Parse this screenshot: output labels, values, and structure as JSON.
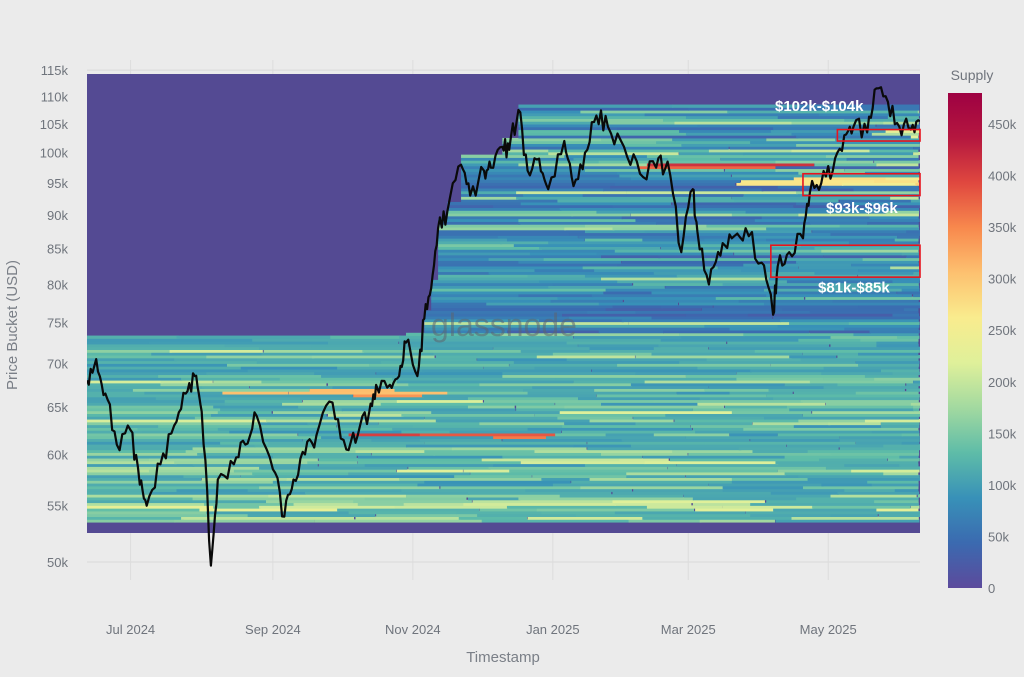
{
  "chart_data": {
    "type": "heatmap",
    "watermark": "glassnode",
    "xlabel": "Timestamp",
    "ylabel": "Price Bucket (USD)",
    "y_scale": "log",
    "ylim": [
      48500,
      117000
    ],
    "xlim": [
      "2024-06-12",
      "2025-06-10"
    ],
    "x_ticks": [
      {
        "date": "2024-07-01",
        "label": "Jul 2024"
      },
      {
        "date": "2024-09-01",
        "label": "Sep 2024"
      },
      {
        "date": "2024-11-01",
        "label": "Nov 2024"
      },
      {
        "date": "2025-01-01",
        "label": "Jan 2025"
      },
      {
        "date": "2025-03-01",
        "label": "Mar 2025"
      },
      {
        "date": "2025-05-01",
        "label": "May 2025"
      }
    ],
    "y_ticks": [
      {
        "value": 50000,
        "label": "50k"
      },
      {
        "value": 55000,
        "label": "55k"
      },
      {
        "value": 60000,
        "label": "60k"
      },
      {
        "value": 65000,
        "label": "65k"
      },
      {
        "value": 70000,
        "label": "70k"
      },
      {
        "value": 75000,
        "label": "75k"
      },
      {
        "value": 80000,
        "label": "80k"
      },
      {
        "value": 85000,
        "label": "85k"
      },
      {
        "value": 90000,
        "label": "90k"
      },
      {
        "value": 95000,
        "label": "95k"
      },
      {
        "value": 100000,
        "label": "100k"
      },
      {
        "value": 105000,
        "label": "105k"
      },
      {
        "value": 110000,
        "label": "110k"
      },
      {
        "value": 115000,
        "label": "115k"
      }
    ],
    "colorbar": {
      "title": "Supply",
      "range": [
        0,
        480000
      ],
      "ticks": [
        {
          "value": 0,
          "label": "0"
        },
        {
          "value": 50000,
          "label": "50k"
        },
        {
          "value": 100000,
          "label": "100k"
        },
        {
          "value": 150000,
          "label": "150k"
        },
        {
          "value": 200000,
          "label": "200k"
        },
        {
          "value": 250000,
          "label": "250k"
        },
        {
          "value": 300000,
          "label": "300k"
        },
        {
          "value": 350000,
          "label": "350k"
        },
        {
          "value": 400000,
          "label": "400k"
        },
        {
          "value": 450000,
          "label": "450k"
        }
      ],
      "colors": [
        "#5c4a9c",
        "#3b6ab0",
        "#3891b8",
        "#5ebca8",
        "#a2d9a0",
        "#dff09a",
        "#f9ec8e",
        "#fdc170",
        "#f8894d",
        "#e0483f",
        "#b5173f",
        "#9e0142"
      ]
    },
    "empty_color": "#544a93",
    "heatmap_bands": [
      {
        "price_low": 53500,
        "price_high": 73500,
        "start": "2024-06-12",
        "end": "2025-06-10",
        "level": 110000,
        "note": "dense band under 73.5k across whole period"
      },
      {
        "price_low": 66200,
        "price_high": 67000,
        "start": "2024-08-05",
        "end": "2024-10-10",
        "level": 320000
      },
      {
        "price_low": 61500,
        "price_high": 62300,
        "start": "2024-10-08",
        "end": "2024-12-10",
        "level": 400000
      },
      {
        "price_low": 55000,
        "price_high": 55600,
        "start": "2024-11-01",
        "end": "2025-02-20",
        "level": 230000
      },
      {
        "price_low": 97000,
        "price_high": 98500,
        "start": "2025-02-01",
        "end": "2025-03-15",
        "level": 400000
      },
      {
        "price_low": 94500,
        "price_high": 96000,
        "start": "2025-03-20",
        "end": "2025-06-10",
        "level": 300000
      },
      {
        "price_low": 102000,
        "price_high": 104000,
        "start": "2025-05-10",
        "end": "2025-06-10",
        "level": 220000
      }
    ],
    "series": [
      {
        "type": "line",
        "x": [
          "2024-06-12",
          "2024-06-16",
          "2024-06-20",
          "2024-06-25",
          "2024-07-01",
          "2024-07-05",
          "2024-07-08",
          "2024-07-14",
          "2024-07-20",
          "2024-07-25",
          "2024-07-29",
          "2024-08-01",
          "2024-08-05",
          "2024-08-08",
          "2024-08-15",
          "2024-08-20",
          "2024-08-25",
          "2024-09-01",
          "2024-09-06",
          "2024-09-10",
          "2024-09-15",
          "2024-09-20",
          "2024-09-27",
          "2024-10-03",
          "2024-10-08",
          "2024-10-13",
          "2024-10-16",
          "2024-10-22",
          "2024-10-26",
          "2024-10-29",
          "2024-11-03",
          "2024-11-06",
          "2024-11-09",
          "2024-11-12",
          "2024-11-16",
          "2024-11-22",
          "2024-11-26",
          "2024-12-02",
          "2024-12-05",
          "2024-12-10",
          "2024-12-13",
          "2024-12-17",
          "2024-12-21",
          "2024-12-26",
          "2024-12-30",
          "2025-01-06",
          "2025-01-10",
          "2025-01-15",
          "2025-01-20",
          "2025-01-25",
          "2025-02-01",
          "2025-02-08",
          "2025-02-15",
          "2025-02-20",
          "2025-02-26",
          "2025-03-03",
          "2025-03-05",
          "2025-03-10",
          "2025-03-15",
          "2025-03-20",
          "2025-03-26",
          "2025-04-02",
          "2025-04-07",
          "2025-04-09",
          "2025-04-14",
          "2025-04-20",
          "2025-04-23",
          "2025-04-28",
          "2025-05-03",
          "2025-05-08",
          "2025-05-12",
          "2025-05-18",
          "2025-05-22",
          "2025-05-27",
          "2025-06-01",
          "2025-06-06",
          "2025-06-10"
        ],
        "y": [
          68000,
          70500,
          66500,
          61000,
          62500,
          57000,
          55000,
          59000,
          63000,
          66500,
          68500,
          64500,
          49700,
          57500,
          59000,
          61000,
          64000,
          58500,
          54000,
          57500,
          60000,
          62000,
          65500,
          60500,
          62000,
          64500,
          67500,
          67500,
          68500,
          72500,
          68500,
          75500,
          79500,
          88000,
          90500,
          98000,
          93000,
          97000,
          97500,
          101000,
          100500,
          107500,
          97000,
          99000,
          94000,
          102000,
          94500,
          100000,
          106500,
          104500,
          101000,
          96500,
          97500,
          98500,
          84500,
          94000,
          87500,
          80000,
          84000,
          86500,
          88000,
          83000,
          76000,
          82500,
          84500,
          86500,
          93500,
          95000,
          97000,
          103000,
          104500,
          103500,
          111500,
          109000,
          104500,
          104000,
          105500
        ]
      }
    ],
    "annotations": [
      {
        "text": "$102k-$104k",
        "price_low": 102000,
        "price_high": 104000,
        "start": "2025-05-05",
        "end": "2025-06-10"
      },
      {
        "text": "$93k-$96k",
        "price_low": 93000,
        "price_high": 96500,
        "start": "2025-04-20",
        "end": "2025-06-10"
      },
      {
        "text": "$81k-$85k",
        "price_low": 81000,
        "price_high": 85500,
        "start": "2025-04-06",
        "end": "2025-06-10"
      }
    ]
  }
}
